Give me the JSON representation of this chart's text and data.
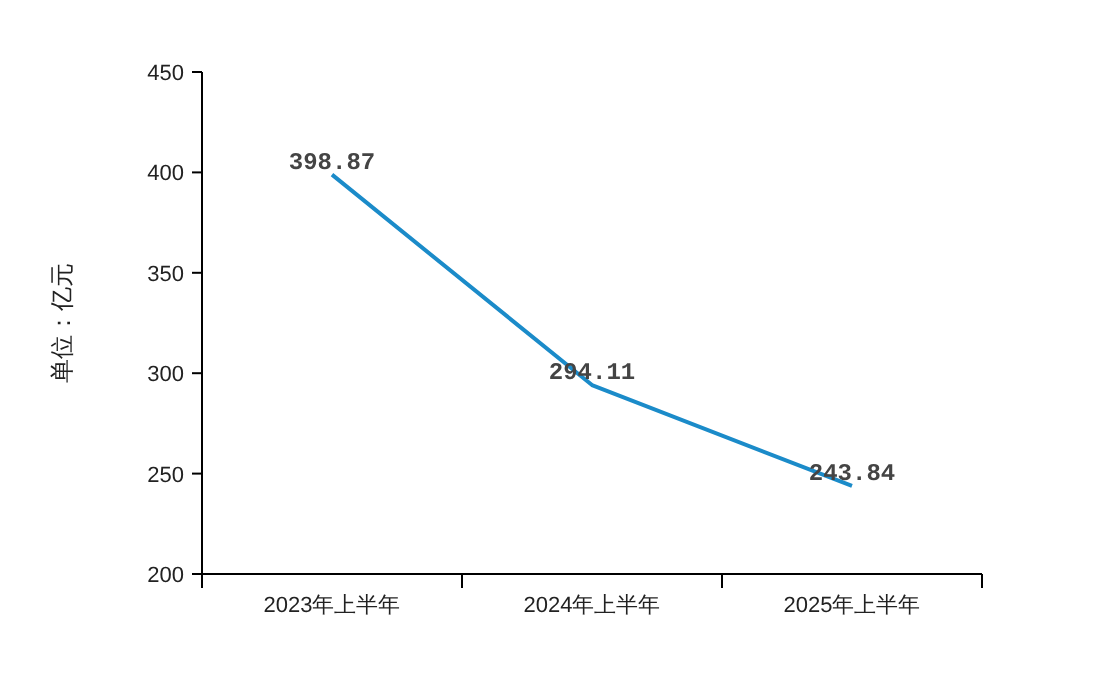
{
  "chart_data": {
    "type": "line",
    "categories": [
      "2023年上半年",
      "2024年上半年",
      "2025年上半年"
    ],
    "values": [
      398.87,
      294.11,
      243.84
    ],
    "color": "#1b8bc9",
    "ylabel": "单位：亿元",
    "ylim": [
      200,
      450
    ],
    "yticks": [
      200,
      250,
      300,
      350,
      400,
      450
    ],
    "data_labels": true
  }
}
